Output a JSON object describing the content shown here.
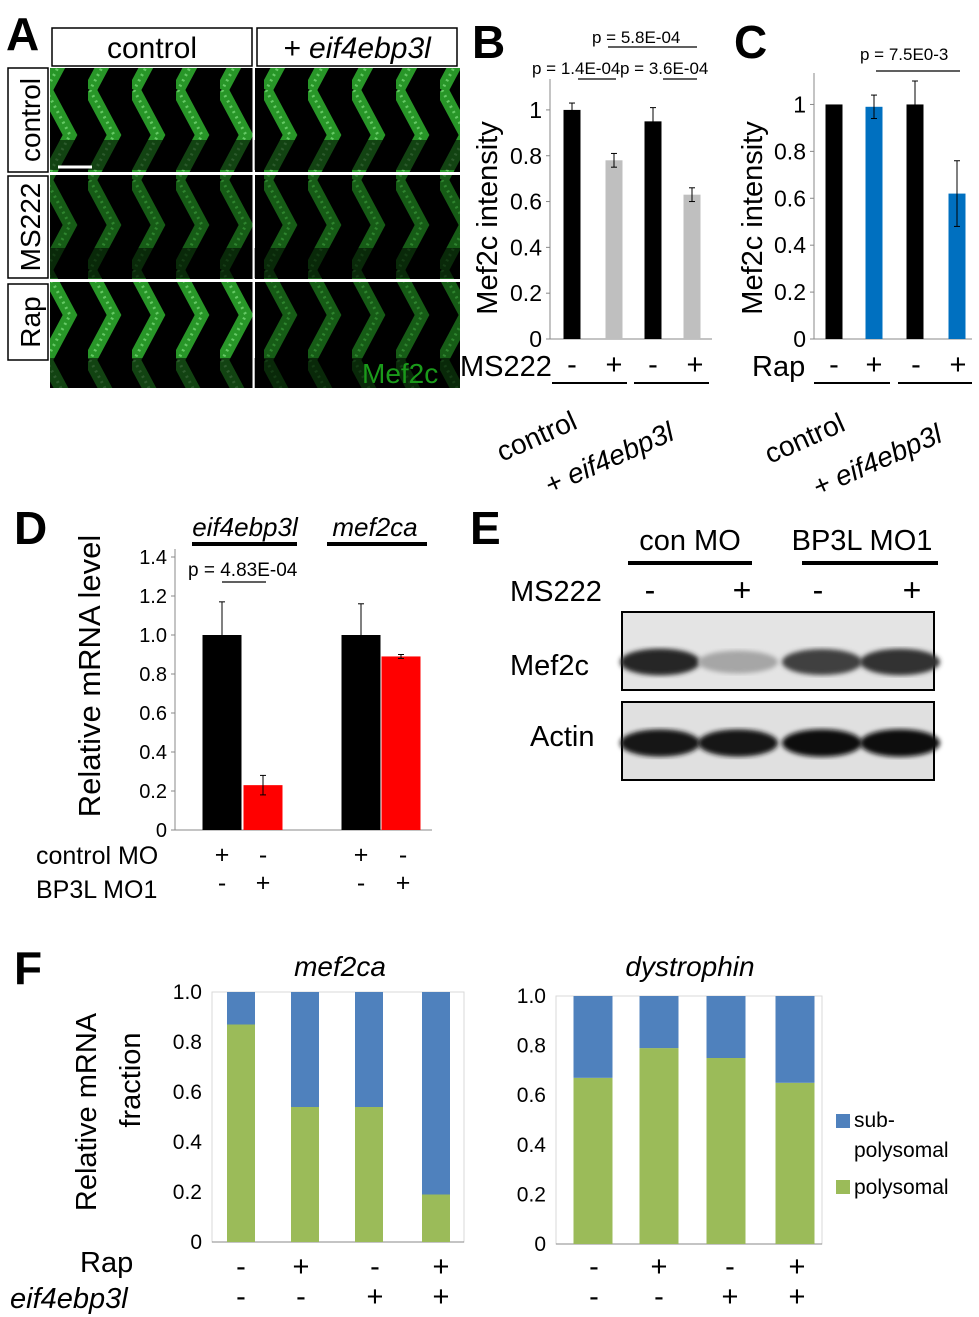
{
  "panel_letters": {
    "a": "A",
    "b": "B",
    "c": "C",
    "d": "D",
    "e": "E",
    "f": "F"
  },
  "panel_a": {
    "col_headers": [
      "control",
      "+ eif4ebp3l"
    ],
    "row_headers": [
      "control",
      "MS222",
      "Rap"
    ],
    "stain_label": "Mef2c",
    "stain_color": "#1a9a1a"
  },
  "chart_data": [
    {
      "id": "B",
      "type": "bar",
      "ylabel": "Mef2c intensity",
      "ylim": [
        0,
        1.1
      ],
      "yticks": [
        "0",
        "0.2",
        "0.4",
        "0.6",
        "0.8",
        "1"
      ],
      "values": [
        1.0,
        0.78,
        0.95,
        0.63
      ],
      "errors": [
        0.03,
        0.03,
        0.06,
        0.03
      ],
      "colors": [
        "#000000",
        "#bfbfbf",
        "#000000",
        "#bfbfbf"
      ],
      "treatment_label": "MS222",
      "treatment_signs": [
        "-",
        "+",
        "-",
        "+"
      ],
      "groups": [
        "control",
        "+ eif4ebp3l"
      ],
      "pvalues": [
        "p = 1.4E-04",
        "p = 3.6E-04",
        "p = 5.8E-04"
      ]
    },
    {
      "id": "C",
      "type": "bar",
      "ylabel": "Mef2c intensity",
      "ylim": [
        0,
        1.1
      ],
      "yticks": [
        "0",
        "0.2",
        "0.4",
        "0.6",
        "0.8",
        "1"
      ],
      "values": [
        1.0,
        0.99,
        1.0,
        0.62
      ],
      "errors": [
        0.0,
        0.05,
        0.1,
        0.14
      ],
      "colors": [
        "#000000",
        "#0070c0",
        "#000000",
        "#0070c0"
      ],
      "treatment_label": "Rap",
      "treatment_signs": [
        "-",
        "+",
        "-",
        "+"
      ],
      "groups": [
        "control",
        "+ eif4ebp3l"
      ],
      "pvalues": [
        "p = 7.5E0-3"
      ]
    },
    {
      "id": "D",
      "type": "bar",
      "ylabel": "Relative mRNA  level",
      "ylim": [
        0,
        1.4
      ],
      "yticks": [
        "0",
        "0.2",
        "0.4",
        "0.6",
        "0.8",
        "1.0",
        "1.2",
        "1.4"
      ],
      "values": [
        1.0,
        0.23,
        1.0,
        0.89
      ],
      "errors": [
        0.17,
        0.05,
        0.16,
        0.01
      ],
      "colors": [
        "#000000",
        "#ff0000",
        "#000000",
        "#ff0000"
      ],
      "genes": [
        "eif4ebp3l",
        "mef2ca"
      ],
      "pvalues": [
        "p = 4.83E-04"
      ],
      "rows": [
        {
          "label": "control MO",
          "signs": [
            "+",
            "-",
            "+",
            "-"
          ]
        },
        {
          "label": "BP3L MO1",
          "signs": [
            "-",
            "+",
            "-",
            "+"
          ]
        }
      ]
    },
    {
      "id": "F1",
      "type": "bar",
      "title": "mef2ca",
      "ylabel": "Relative mRNA fraction",
      "ylim": [
        0,
        1.0
      ],
      "yticks": [
        "0",
        "0.2",
        "0.4",
        "0.6",
        "0.8",
        "1.0"
      ],
      "series": [
        {
          "name": "polysomal",
          "values": [
            0.87,
            0.54,
            0.54,
            0.19
          ]
        },
        {
          "name": "sub-polysomal",
          "values": [
            0.13,
            0.46,
            0.46,
            0.81
          ]
        }
      ],
      "rows": [
        {
          "label": "Rap",
          "signs": [
            "-",
            "+",
            "-",
            "+"
          ]
        },
        {
          "label": "eif4ebp3l",
          "signs": [
            "-",
            "-",
            "+",
            "+"
          ]
        }
      ]
    },
    {
      "id": "F2",
      "type": "bar",
      "title": "dystrophin",
      "ylim": [
        0,
        1.0
      ],
      "yticks": [
        "0",
        "0.2",
        "0.4",
        "0.6",
        "0.8",
        "1.0"
      ],
      "series": [
        {
          "name": "polysomal",
          "values": [
            0.67,
            0.79,
            0.75,
            0.65
          ]
        },
        {
          "name": "sub-polysomal",
          "values": [
            0.33,
            0.21,
            0.25,
            0.35
          ]
        }
      ],
      "rows": [
        {
          "label": "Rap",
          "signs": [
            "-",
            "+",
            "-",
            "+"
          ]
        },
        {
          "label": "eif4ebp3l",
          "signs": [
            "-",
            "-",
            "+",
            "+"
          ]
        }
      ]
    }
  ],
  "panel_e": {
    "groups": [
      "con MO",
      "BP3L MO1"
    ],
    "treatment_label": "MS222",
    "treatment_signs": [
      "-",
      "+",
      "-",
      "+"
    ],
    "blots": [
      {
        "label": "Mef2c",
        "intensities": [
          0.85,
          0.35,
          0.75,
          0.8
        ]
      },
      {
        "label": "Actin",
        "intensities": [
          0.9,
          0.9,
          0.95,
          0.95
        ]
      }
    ]
  },
  "legend_f": {
    "items": [
      {
        "label_lines": [
          "sub-",
          "polysomal"
        ],
        "color": "#4f81bd"
      },
      {
        "label_lines": [
          "polysomal"
        ],
        "color": "#9bbb59"
      }
    ]
  }
}
